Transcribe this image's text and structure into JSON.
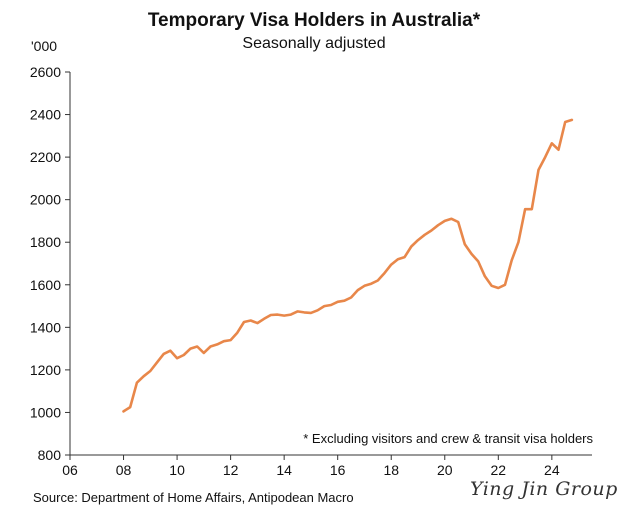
{
  "chart_data": {
    "type": "line",
    "title": "Temporary Visa Holders in Australia*",
    "subtitle": "Seasonally adjusted",
    "ylabel": "'000",
    "xlabel": "",
    "xlim": [
      2006,
      2025.5
    ],
    "ylim": [
      800,
      2600
    ],
    "xticks": [
      2006,
      2008,
      2010,
      2012,
      2014,
      2016,
      2018,
      2020,
      2022,
      2024
    ],
    "xtick_labels": [
      "06",
      "08",
      "10",
      "12",
      "14",
      "16",
      "18",
      "20",
      "22",
      "24"
    ],
    "yticks": [
      800,
      1000,
      1200,
      1400,
      1600,
      1800,
      2000,
      2200,
      2400,
      2600
    ],
    "grid": false,
    "legend": "none",
    "line_color": "#e8874a",
    "annotation": "* Excluding visitors and crew & transit visa holders",
    "source": "Source: Department of Home Affairs, Antipodean Macro",
    "series": [
      {
        "x": [
          2008.0,
          2008.25,
          2008.5,
          2008.75,
          2009.0,
          2009.25,
          2009.5,
          2009.75,
          2010.0,
          2010.25,
          2010.5,
          2010.75,
          2011.0,
          2011.25,
          2011.5,
          2011.75,
          2012.0,
          2012.25,
          2012.5,
          2012.75,
          2013.0,
          2013.25,
          2013.5,
          2013.75,
          2014.0,
          2014.25,
          2014.5,
          2014.75,
          2015.0,
          2015.25,
          2015.5,
          2015.75,
          2016.0,
          2016.25,
          2016.5,
          2016.75,
          2017.0,
          2017.25,
          2017.5,
          2017.75,
          2018.0,
          2018.25,
          2018.5,
          2018.75,
          2019.0,
          2019.25,
          2019.5,
          2019.75,
          2020.0,
          2020.25,
          2020.5,
          2020.75,
          2021.0,
          2021.25,
          2021.5,
          2021.75,
          2022.0,
          2022.25,
          2022.5,
          2022.75,
          2023.0,
          2023.25,
          2023.5,
          2023.75,
          2024.0,
          2024.25,
          2024.5,
          2024.75
        ],
        "values": [
          1005,
          1025,
          1140,
          1170,
          1195,
          1235,
          1275,
          1290,
          1255,
          1270,
          1300,
          1310,
          1280,
          1310,
          1320,
          1335,
          1340,
          1375,
          1425,
          1432,
          1420,
          1440,
          1458,
          1460,
          1455,
          1460,
          1475,
          1470,
          1468,
          1480,
          1500,
          1505,
          1520,
          1525,
          1540,
          1575,
          1595,
          1605,
          1620,
          1655,
          1695,
          1720,
          1730,
          1780,
          1810,
          1835,
          1855,
          1880,
          1900,
          1910,
          1895,
          1790,
          1745,
          1710,
          1640,
          1595,
          1585,
          1600,
          1715,
          1800,
          1955,
          1955,
          2140,
          2200,
          2265,
          2235,
          2365,
          2375
        ]
      }
    ]
  }
}
